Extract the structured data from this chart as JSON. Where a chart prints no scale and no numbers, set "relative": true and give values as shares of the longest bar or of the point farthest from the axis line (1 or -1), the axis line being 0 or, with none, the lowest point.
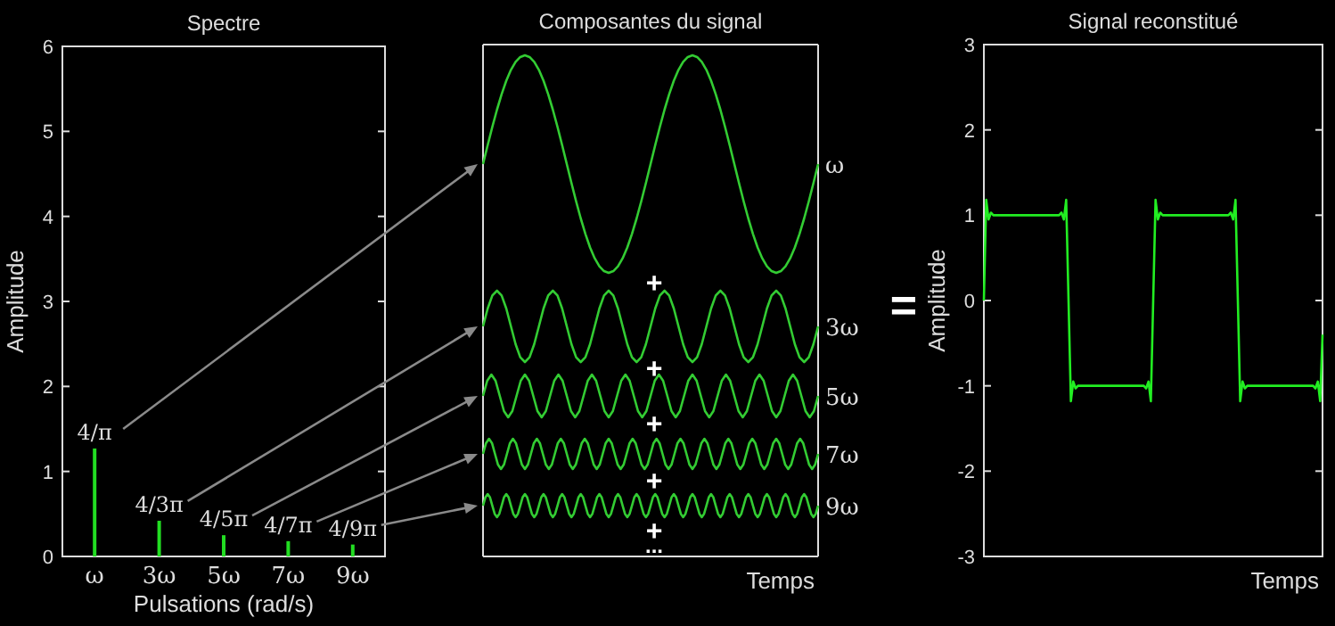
{
  "chart_data": [
    {
      "type": "bar",
      "title": "Spectre",
      "xlabel": "Pulsations (rad/s)",
      "ylabel": "Amplitude",
      "categories": [
        "ω",
        "3ω",
        "5ω",
        "7ω",
        "9ω"
      ],
      "values": [
        1.27,
        0.42,
        0.25,
        0.18,
        0.14
      ],
      "annotations": [
        "4/π",
        "4/3π",
        "4/5π",
        "4/7π",
        "4/9π"
      ],
      "color": "#22dd22",
      "ylim": [
        0,
        6
      ],
      "yticks": [
        0,
        1,
        2,
        3,
        4,
        5,
        6
      ]
    },
    {
      "type": "line",
      "title": "Composantes du signal",
      "relative": true,
      "annotations": [
        "+"
      ],
      "categories": [
        null,
        null,
        null,
        null,
        null,
        null,
        null,
        null,
        null,
        null,
        null,
        null,
        null,
        null,
        null,
        null,
        null,
        null,
        null,
        null,
        null,
        null,
        null,
        null,
        null,
        null,
        null,
        null,
        null,
        null,
        null,
        null,
        null,
        null,
        null,
        null,
        null,
        null,
        null,
        null,
        null,
        null,
        null,
        null,
        null,
        null,
        null,
        null,
        null,
        null,
        null,
        null,
        null,
        null,
        null,
        null,
        null,
        null,
        null,
        null,
        null,
        null,
        null,
        null,
        null,
        null,
        null,
        null,
        null,
        null,
        null,
        null,
        null
      ],
      "series": [
        {
          "name": "ω",
          "color": "#33cc33",
          "values": [
            0.5,
            0.587,
            0.671,
            0.75,
            0.821,
            0.883,
            0.933,
            0.97,
            0.992,
            1,
            0.992,
            0.97,
            0.933,
            0.883,
            0.821,
            0.75,
            0.671,
            0.587,
            0.5,
            0.413,
            0.329,
            0.25,
            0.179,
            0.117,
            0.067,
            0.03,
            0.008,
            0,
            0.008,
            0.03,
            0.067,
            0.117,
            0.179,
            0.25,
            0.329,
            0.413,
            0.5,
            0.587,
            0.671,
            0.75,
            0.821,
            0.883,
            0.933,
            0.97,
            0.992,
            1,
            0.992,
            0.97,
            0.933,
            0.883,
            0.821,
            0.75,
            0.671,
            0.587,
            0.5,
            0.413,
            0.329,
            0.25,
            0.179,
            0.117,
            0.067,
            0.03,
            0.008,
            0,
            0.008,
            0.03,
            0.067,
            0.117,
            0.179,
            0.25,
            0.329,
            0.413,
            0.5
          ]
        }
      ]
    },
    {
      "type": "line",
      "relative": true,
      "annotations": [
        "+"
      ],
      "categories": [
        null,
        null,
        null,
        null,
        null,
        null,
        null,
        null,
        null,
        null,
        null,
        null,
        null,
        null,
        null,
        null,
        null,
        null,
        null,
        null,
        null,
        null,
        null,
        null,
        null,
        null,
        null,
        null,
        null,
        null,
        null,
        null,
        null,
        null,
        null,
        null,
        null,
        null,
        null,
        null,
        null,
        null,
        null,
        null,
        null,
        null,
        null,
        null,
        null,
        null,
        null,
        null,
        null,
        null,
        null,
        null,
        null,
        null,
        null,
        null,
        null,
        null,
        null,
        null,
        null,
        null,
        null,
        null,
        null,
        null,
        null,
        null,
        null
      ],
      "series": [
        {
          "name": "3ω",
          "color": "#33cc33",
          "values": [
            0.5,
            0.75,
            0.933,
            1,
            0.933,
            0.75,
            0.5,
            0.25,
            0.067,
            0,
            0.067,
            0.25,
            0.5,
            0.75,
            0.933,
            1,
            0.933,
            0.75,
            0.5,
            0.25,
            0.067,
            0,
            0.067,
            0.25,
            0.5,
            0.75,
            0.933,
            1,
            0.933,
            0.75,
            0.5,
            0.25,
            0.067,
            0,
            0.067,
            0.25,
            0.5,
            0.75,
            0.933,
            1,
            0.933,
            0.75,
            0.5,
            0.25,
            0.067,
            0,
            0.067,
            0.25,
            0.5,
            0.75,
            0.933,
            1,
            0.933,
            0.75,
            0.5,
            0.25,
            0.067,
            0,
            0.067,
            0.25,
            0.5,
            0.75,
            0.933,
            1,
            0.933,
            0.75,
            0.5,
            0.25,
            0.067,
            0,
            0.067,
            0.25,
            0.5
          ]
        }
      ]
    },
    {
      "type": "line",
      "relative": true,
      "annotations": [
        "+"
      ],
      "categories": [
        null,
        null,
        null,
        null,
        null,
        null,
        null,
        null,
        null,
        null,
        null,
        null,
        null,
        null,
        null,
        null,
        null,
        null,
        null,
        null,
        null,
        null,
        null,
        null,
        null,
        null,
        null,
        null,
        null,
        null,
        null,
        null,
        null,
        null,
        null,
        null,
        null,
        null,
        null,
        null,
        null,
        null,
        null,
        null,
        null,
        null,
        null,
        null,
        null,
        null,
        null,
        null,
        null,
        null,
        null,
        null,
        null,
        null,
        null,
        null,
        null,
        null,
        null,
        null,
        null,
        null,
        null,
        null,
        null,
        null,
        null,
        null,
        null,
        null,
        null,
        null,
        null,
        null,
        null,
        null,
        null
      ],
      "series": [
        {
          "name": "5ω",
          "color": "#33cc33",
          "values": [
            0.5,
            0.854,
            1,
            0.854,
            0.5,
            0.146,
            0,
            0.146,
            0.5,
            0.854,
            1,
            0.854,
            0.5,
            0.146,
            0,
            0.146,
            0.5,
            0.854,
            1,
            0.854,
            0.5,
            0.146,
            0,
            0.146,
            0.5,
            0.854,
            1,
            0.854,
            0.5,
            0.146,
            0,
            0.146,
            0.5,
            0.854,
            1,
            0.854,
            0.5,
            0.146,
            0,
            0.146,
            0.5,
            0.854,
            1,
            0.854,
            0.5,
            0.146,
            0,
            0.146,
            0.5,
            0.854,
            1,
            0.854,
            0.5,
            0.146,
            0,
            0.146,
            0.5,
            0.854,
            1,
            0.854,
            0.5,
            0.146,
            0,
            0.146,
            0.5,
            0.854,
            1,
            0.854,
            0.5,
            0.146,
            0,
            0.146,
            0.5,
            0.854,
            1,
            0.854,
            0.5,
            0.146,
            0,
            0.146,
            0.5
          ]
        }
      ]
    },
    {
      "type": "line",
      "relative": true,
      "annotations": [
        "+"
      ],
      "categories": [
        null,
        null,
        null,
        null,
        null,
        null,
        null,
        null,
        null,
        null,
        null,
        null,
        null,
        null,
        null,
        null,
        null,
        null,
        null,
        null,
        null,
        null,
        null,
        null,
        null,
        null,
        null,
        null,
        null,
        null,
        null,
        null,
        null,
        null,
        null,
        null,
        null,
        null,
        null,
        null,
        null,
        null,
        null,
        null,
        null,
        null,
        null,
        null,
        null,
        null,
        null,
        null,
        null,
        null,
        null,
        null,
        null,
        null,
        null,
        null,
        null,
        null,
        null,
        null,
        null,
        null,
        null,
        null,
        null,
        null,
        null,
        null,
        null,
        null,
        null,
        null,
        null,
        null,
        null,
        null,
        null,
        null,
        null,
        null,
        null,
        null,
        null,
        null,
        null,
        null,
        null,
        null,
        null,
        null,
        null,
        null,
        null,
        null,
        null,
        null,
        null,
        null,
        null,
        null,
        null,
        null,
        null,
        null,
        null,
        null,
        null,
        null,
        null
      ],
      "series": [
        {
          "name": "7ω",
          "color": "#33cc33",
          "values": [
            0.5,
            0.854,
            1,
            0.854,
            0.5,
            0.146,
            0,
            0.146,
            0.5,
            0.854,
            1,
            0.854,
            0.5,
            0.146,
            0,
            0.146,
            0.5,
            0.854,
            1,
            0.854,
            0.5,
            0.146,
            0,
            0.146,
            0.5,
            0.854,
            1,
            0.854,
            0.5,
            0.146,
            0,
            0.146,
            0.5,
            0.854,
            1,
            0.854,
            0.5,
            0.146,
            0,
            0.146,
            0.5,
            0.854,
            1,
            0.854,
            0.5,
            0.146,
            0,
            0.146,
            0.5,
            0.854,
            1,
            0.854,
            0.5,
            0.146,
            0,
            0.146,
            0.5,
            0.854,
            1,
            0.854,
            0.5,
            0.146,
            0,
            0.146,
            0.5,
            0.854,
            1,
            0.854,
            0.5,
            0.146,
            0,
            0.146,
            0.5,
            0.854,
            1,
            0.854,
            0.5,
            0.146,
            0,
            0.146,
            0.5,
            0.854,
            1,
            0.854,
            0.5,
            0.146,
            0,
            0.146,
            0.5,
            0.854,
            1,
            0.854,
            0.5,
            0.146,
            0,
            0.146,
            0.5,
            0.854,
            1,
            0.854,
            0.5,
            0.146,
            0,
            0.146,
            0.5,
            0.854,
            1,
            0.854,
            0.5,
            0.146,
            0,
            0.146,
            0.5
          ]
        }
      ]
    },
    {
      "type": "line",
      "relative": true,
      "xlabel": "Temps",
      "annotations": [
        "+",
        "..."
      ],
      "categories": [
        null,
        null,
        null,
        null,
        null,
        null,
        null,
        null,
        null,
        null,
        null,
        null,
        null,
        null,
        null,
        null,
        null,
        null,
        null,
        null,
        null,
        null,
        null,
        null,
        null,
        null,
        null,
        null,
        null,
        null,
        null,
        null,
        null,
        null,
        null,
        null,
        null,
        null,
        null,
        null,
        null,
        null,
        null,
        null,
        null,
        null,
        null,
        null,
        null,
        null,
        null,
        null,
        null,
        null,
        null,
        null,
        null,
        null,
        null,
        null,
        null,
        null,
        null,
        null,
        null,
        null,
        null,
        null,
        null,
        null,
        null,
        null,
        null,
        null,
        null,
        null,
        null,
        null,
        null,
        null,
        null,
        null,
        null,
        null,
        null,
        null,
        null,
        null,
        null,
        null,
        null,
        null,
        null,
        null,
        null,
        null,
        null,
        null,
        null,
        null,
        null,
        null,
        null,
        null,
        null,
        null,
        null,
        null,
        null,
        null,
        null,
        null,
        null,
        null,
        null,
        null,
        null,
        null,
        null,
        null,
        null,
        null,
        null,
        null,
        null,
        null,
        null,
        null,
        null,
        null,
        null,
        null,
        null,
        null,
        null,
        null,
        null,
        null,
        null,
        null,
        null,
        null,
        null,
        null,
        null
      ],
      "series": [
        {
          "name": "9ω",
          "color": "#33cc33",
          "values": [
            0.814,
            0.945,
            1,
            0.945,
            0.814,
            0.683,
            0.629,
            0.683,
            0.814,
            0.945,
            1,
            0.945,
            0.814,
            0.683,
            0.629,
            0.683,
            0.814,
            0.945,
            1,
            0.945,
            0.814,
            0.683,
            0.629,
            0.683,
            0.814,
            0.945,
            1,
            0.945,
            0.814,
            0.683,
            0.629,
            0.683,
            0.814,
            0.945,
            1,
            0.945,
            0.814,
            0.683,
            0.629,
            0.683,
            0.814,
            0.945,
            1,
            0.945,
            0.814,
            0.683,
            0.629,
            0.683,
            0.814,
            0.945,
            1,
            0.945,
            0.814,
            0.683,
            0.629,
            0.683,
            0.814,
            0.945,
            1,
            0.945,
            0.814,
            0.683,
            0.629,
            0.683,
            0.814,
            0.945,
            1,
            0.945,
            0.814,
            0.683,
            0.629,
            0.683,
            0.814,
            0.945,
            1,
            0.945,
            0.814,
            0.683,
            0.629,
            0.683,
            0.814,
            0.945,
            1,
            0.945,
            0.814,
            0.683,
            0.629,
            0.683,
            0.814,
            0.945,
            1,
            0.945,
            0.814,
            0.683,
            0.629,
            0.683,
            0.814,
            0.945,
            1,
            0.945,
            0.814,
            0.683,
            0.629,
            0.683,
            0.814,
            0.945,
            1,
            0.945,
            0.814,
            0.683,
            0.629,
            0.683,
            0.814,
            0.945,
            1,
            0.945,
            0.814,
            0.683,
            0.629,
            0.683,
            0.814,
            0.945,
            1,
            0.945,
            0.814,
            0.683,
            0.629,
            0.683,
            0.814,
            0.945,
            1,
            0.945,
            0.814,
            0.683,
            0.629,
            0.683,
            0.814,
            0.945,
            1,
            0.945,
            0.814,
            0.683,
            0.629,
            0.683,
            0.814
          ]
        }
      ]
    },
    {
      "type": "line",
      "title": "Signal reconstitué",
      "xlabel": "Temps",
      "ylabel": "Amplitude",
      "annotations": [
        "="
      ],
      "ylim": [
        -3,
        3
      ],
      "yticks": [
        -3,
        -2,
        -1,
        0,
        1,
        2,
        3
      ],
      "categories": [
        null,
        null,
        null,
        null,
        null,
        null,
        null,
        null,
        null,
        null,
        null,
        null,
        null,
        null,
        null,
        null,
        null,
        null,
        null,
        null,
        null,
        null,
        null,
        null,
        null,
        null,
        null,
        null,
        null,
        null,
        null,
        null,
        null,
        null,
        null,
        null,
        null,
        null,
        null,
        null,
        null,
        null,
        null,
        null,
        null,
        null,
        null,
        null,
        null,
        null,
        null,
        null,
        null,
        null,
        null,
        null,
        null,
        null,
        null,
        null,
        null,
        null,
        null,
        null,
        null,
        null,
        null,
        null,
        null,
        null,
        null,
        null,
        null,
        null,
        null,
        null,
        null,
        null,
        null,
        null,
        null,
        null,
        null,
        null,
        null,
        null,
        null,
        null,
        null,
        null,
        null,
        null,
        null,
        null,
        null,
        null,
        null,
        null,
        null,
        null,
        null,
        null,
        null,
        null,
        null,
        null,
        null,
        null,
        null,
        null,
        null,
        null,
        null,
        null,
        null,
        null,
        null,
        null,
        null,
        null,
        null,
        null,
        null,
        null,
        null,
        null,
        null,
        null,
        null,
        null,
        null,
        null,
        null,
        null,
        null,
        null,
        null,
        null,
        null,
        null,
        null,
        null,
        null,
        null,
        null
      ],
      "series": [
        {
          "color": "#22ee22",
          "values": [
            0,
            1.18,
            0.95,
            1.03,
            1,
            1,
            1,
            1,
            1,
            1,
            1,
            1,
            1,
            1,
            1,
            1,
            1,
            1,
            1,
            1,
            1,
            1,
            1,
            1,
            1,
            1,
            1,
            1,
            1,
            1,
            1,
            1,
            1,
            1.03,
            0.95,
            1.18,
            0,
            -1.18,
            -0.95,
            -1.03,
            -1,
            -1,
            -1,
            -1,
            -1,
            -1,
            -1,
            -1,
            -1,
            -1,
            -1,
            -1,
            -1,
            -1,
            -1,
            -1,
            -1,
            -1,
            -1,
            -1,
            -1,
            -1,
            -1,
            -1,
            -1,
            -1,
            -1,
            -1,
            -1,
            -1.03,
            -0.95,
            -1.18,
            0,
            1.18,
            0.95,
            1.03,
            1,
            1,
            1,
            1,
            1,
            1,
            1,
            1,
            1,
            1,
            1,
            1,
            1,
            1,
            1,
            1,
            1,
            1,
            1,
            1,
            1,
            1,
            1,
            1,
            1,
            1,
            1,
            1,
            1,
            1.03,
            0.95,
            1.18,
            0,
            -1.18,
            -0.95,
            -1.03,
            -1,
            -1,
            -1,
            -1,
            -1,
            -1,
            -1,
            -1,
            -1,
            -1,
            -1,
            -1,
            -1,
            -1,
            -1,
            -1,
            -1,
            -1,
            -1,
            -1,
            -1,
            -1,
            -1,
            -1,
            -1,
            -1,
            -1,
            -1,
            -1,
            -1.03,
            -0.95,
            -1.18,
            -0.4
          ]
        }
      ]
    }
  ]
}
